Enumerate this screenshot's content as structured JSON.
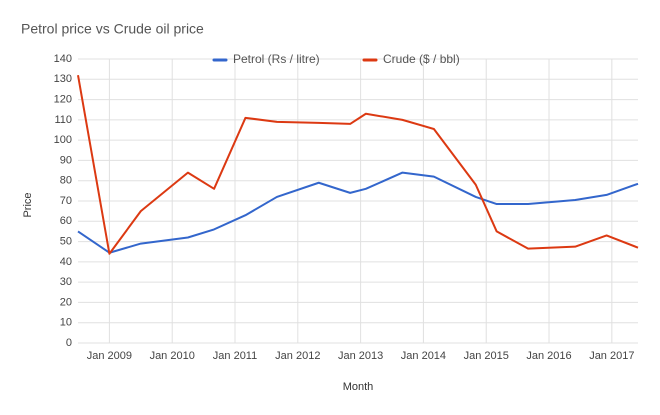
{
  "chart_data": {
    "type": "line",
    "title": "Petrol price vs Crude oil price",
    "x_label": "Month",
    "y_label": "Price",
    "x": [
      "2008-07",
      "2009-01",
      "2009-07",
      "2010-04",
      "2010-09",
      "2011-03",
      "2011-09",
      "2012-05",
      "2012-11",
      "2013-02",
      "2013-09",
      "2014-03",
      "2014-11",
      "2015-03",
      "2015-09",
      "2016-06",
      "2016-12",
      "2017-06"
    ],
    "series": [
      {
        "name": "Petrol (Rs / litre)",
        "color": "#3366cc",
        "values": [
          55,
          44.5,
          49,
          52,
          56,
          63,
          72,
          79,
          74,
          76,
          84,
          82,
          72,
          68.5,
          68.5,
          70.5,
          73,
          78.5
        ]
      },
      {
        "name": "Crude ($ / bbl)",
        "color": "#dc3912",
        "values": [
          132,
          44,
          65,
          84,
          76,
          111,
          109,
          108.5,
          108,
          113,
          110,
          105.5,
          78,
          55,
          46.5,
          47.5,
          53,
          47
        ]
      }
    ],
    "xlim": [
      "2008-07",
      "2017-06"
    ],
    "xticks": [
      {
        "value": "2009-01",
        "label": "Jan 2009"
      },
      {
        "value": "2010-01",
        "label": "Jan 2010"
      },
      {
        "value": "2011-01",
        "label": "Jan 2011"
      },
      {
        "value": "2012-01",
        "label": "Jan 2012"
      },
      {
        "value": "2013-01",
        "label": "Jan 2013"
      },
      {
        "value": "2014-01",
        "label": "Jan 2014"
      },
      {
        "value": "2015-01",
        "label": "Jan 2015"
      },
      {
        "value": "2016-01",
        "label": "Jan 2016"
      },
      {
        "value": "2017-01",
        "label": "Jan 2017"
      }
    ],
    "ylim": [
      0,
      140
    ],
    "yticks": [
      0,
      10,
      20,
      30,
      40,
      50,
      60,
      70,
      80,
      90,
      100,
      110,
      120,
      130,
      140
    ],
    "grid": true,
    "legend": "top"
  }
}
